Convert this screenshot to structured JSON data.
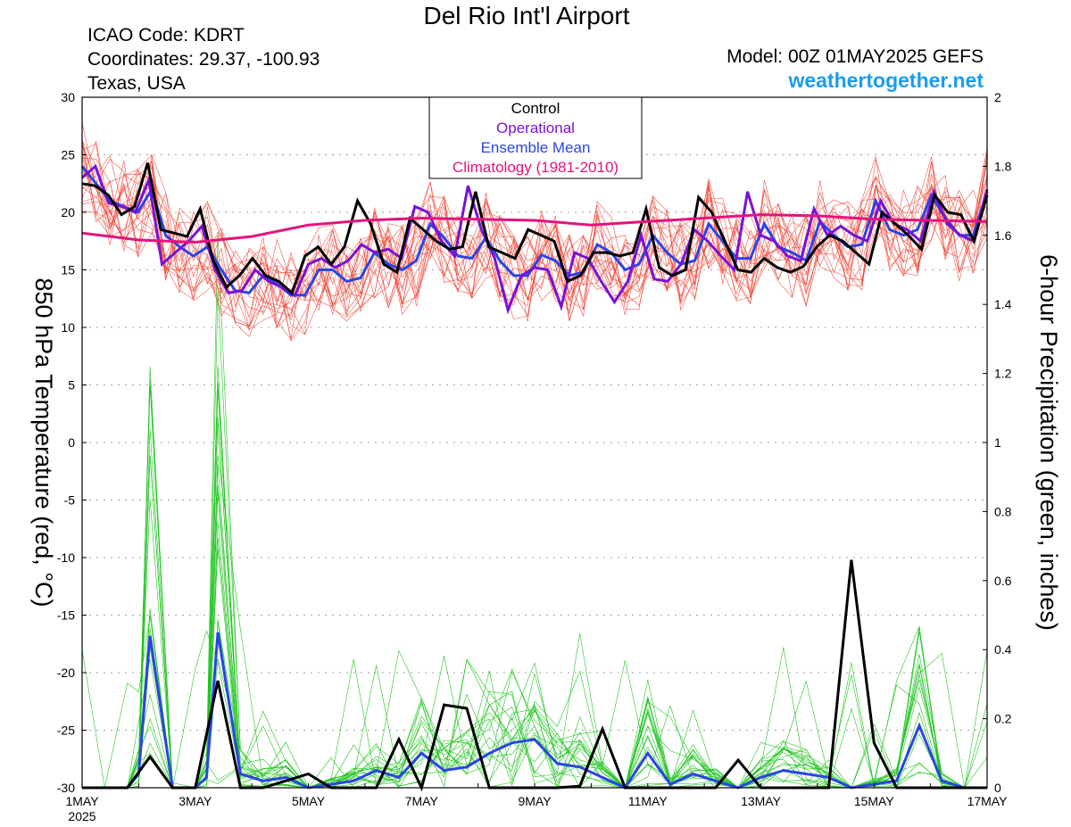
{
  "title": "Del Rio Int'l Airport",
  "station": {
    "icao": "ICAO Code: KDRT",
    "coords": "Coordinates: 29.37, -100.93",
    "region": "Texas, USA"
  },
  "model": "Model: 00Z 01MAY2025 GEFS",
  "brand": "weathertogether.net",
  "colors": {
    "control": "#000000",
    "operational": "#7a11d6",
    "ensemble_mean": "#2a44e6",
    "climatology": "#e6127e",
    "temp_members": "#ef3b2c",
    "precip_members": "#20c420",
    "brand": "#1a9cf0",
    "grid": "#a0a0a0"
  },
  "chart_data": {
    "type": "line",
    "title": "Del Rio Int'l Airport",
    "xlabel": "",
    "ylabel": "850 hPa Temperature (red, °C)",
    "y2label": "6-hour Precipitation (green, inches)",
    "xlim_days": [
      0,
      16
    ],
    "ylim": [
      -30,
      30
    ],
    "y2lim": [
      0,
      2
    ],
    "grid": "horizontal dotted",
    "legend": {
      "placement": "top-center",
      "entries": [
        "Control",
        "Operational",
        "Ensemble Mean",
        "Climatology (1981-2010)"
      ]
    },
    "x_ticks": [
      "1MAY",
      "3MAY",
      "5MAY",
      "7MAY",
      "9MAY",
      "11MAY",
      "13MAY",
      "15MAY",
      "17MAY"
    ],
    "x_tick_days": [
      0,
      2,
      4,
      6,
      8,
      10,
      12,
      14,
      16
    ],
    "x_year": "2025",
    "y_ticks": [
      -30,
      -25,
      -20,
      -15,
      -10,
      -5,
      0,
      5,
      10,
      15,
      20,
      25,
      30
    ],
    "y2_ticks": [
      "0",
      "0.2",
      "0.4",
      "0.6",
      "0.8",
      "1",
      "1.2",
      "1.4",
      "1.6",
      "1.8",
      "2"
    ],
    "series": [
      {
        "name": "Control",
        "axis": "temp",
        "values": [
          22.5,
          22.3,
          21.5,
          19.8,
          20.5,
          24.3,
          18.5,
          18.2,
          17.9,
          20.3,
          15.8,
          13.5,
          14.5,
          16.0,
          14.5,
          14.0,
          13.0,
          16.2,
          17.0,
          15.5,
          17.0,
          21.0,
          19.0,
          15.5,
          14.8,
          19.5,
          18.5,
          17.5,
          16.8,
          17.0,
          21.8,
          17.0,
          16.5,
          16.0,
          18.5,
          18.0,
          17.5,
          14.0,
          14.5,
          16.5,
          16.5,
          16.2,
          16.5,
          20.3,
          15.2,
          14.5,
          15.0,
          21.3,
          20.0,
          17.5,
          15.0,
          14.8,
          16.0,
          15.2,
          14.8,
          15.3,
          17.0,
          18.0,
          17.5,
          16.5,
          15.5,
          20.0,
          19.0,
          18.0,
          16.8,
          21.5,
          20.0,
          19.8,
          17.5,
          21.5
        ]
      },
      {
        "name": "Operational",
        "axis": "temp",
        "values": [
          23.0,
          24.0,
          20.8,
          20.5,
          20.0,
          22.8,
          15.5,
          16.5,
          17.5,
          18.8,
          15.0,
          13.0,
          13.2,
          15.0,
          14.0,
          13.5,
          12.8,
          15.5,
          16.0,
          15.2,
          15.8,
          17.2,
          16.5,
          16.8,
          16.0,
          20.5,
          20.0,
          17.5,
          16.2,
          22.3,
          18.5,
          16.0,
          11.5,
          14.5,
          15.2,
          15.0,
          11.8,
          16.5,
          16.0,
          14.0,
          12.2,
          14.0,
          18.0,
          14.2,
          14.0,
          15.5,
          18.5,
          17.5,
          16.2,
          15.0,
          21.8,
          18.0,
          17.5,
          16.2,
          15.8,
          20.3,
          18.0,
          18.8,
          18.0,
          17.5,
          21.0,
          19.0,
          18.5,
          17.5,
          21.8,
          19.0,
          18.0,
          17.5,
          22.0
        ]
      },
      {
        "name": "Ensemble Mean",
        "axis": "temp",
        "values": [
          24.0,
          22.5,
          21.0,
          20.5,
          20.0,
          22.0,
          18.0,
          17.0,
          16.2,
          17.0,
          15.0,
          13.2,
          13.0,
          14.5,
          13.8,
          12.8,
          12.8,
          15.0,
          15.0,
          14.0,
          14.3,
          16.5,
          15.5,
          15.0,
          15.8,
          19.0,
          17.8,
          16.2,
          16.0,
          17.8,
          15.8,
          14.5,
          14.5,
          16.3,
          15.8,
          14.5,
          14.8,
          17.2,
          16.5,
          15.0,
          15.5,
          18.0,
          16.5,
          15.5,
          15.8,
          19.0,
          17.5,
          16.0,
          16.0,
          19.0,
          17.0,
          16.5,
          15.8,
          19.2,
          18.0,
          17.0,
          17.2,
          21.0,
          18.5,
          18.0,
          18.5,
          21.5,
          19.5,
          18.0,
          18.0,
          21.8
        ]
      },
      {
        "name": "Climatology (1981-2010)",
        "axis": "temp",
        "days": [
          0,
          1,
          2,
          3,
          4,
          5,
          6,
          7,
          8,
          9,
          10,
          11,
          12,
          13,
          14,
          15,
          16
        ],
        "values": [
          18.2,
          17.6,
          17.4,
          17.9,
          18.9,
          19.3,
          19.5,
          19.4,
          19.3,
          18.9,
          19.2,
          19.5,
          19.8,
          19.7,
          19.4,
          19.3,
          19.2
        ]
      },
      {
        "name": "Control",
        "axis": "precip",
        "values": [
          0,
          0,
          0,
          0,
          0,
          0,
          0,
          0,
          0.005,
          0.04,
          0.09,
          0.02,
          0.0,
          0.0,
          0.31,
          0.02,
          0.015,
          0.01,
          0.02,
          0.04,
          0.02,
          0.005,
          0,
          0,
          0,
          0,
          0.01,
          0.005,
          0,
          0,
          0.14,
          0.06,
          0.02,
          0,
          0,
          0,
          0.24,
          0.23,
          0,
          0,
          0,
          0,
          0,
          0,
          0,
          0,
          0.005,
          0.005,
          0,
          0,
          0,
          0.08,
          0.15,
          0.08,
          0,
          0,
          0,
          0.01,
          0,
          0,
          0,
          0,
          0,
          0,
          0.03,
          0.03,
          0,
          0,
          0,
          0,
          0,
          0.01,
          0,
          0,
          0,
          0.005,
          0,
          0,
          0,
          0,
          0,
          0,
          0,
          0.01,
          0,
          0,
          0,
          0.05,
          0.03,
          0,
          0,
          0,
          0,
          0,
          0,
          0,
          0,
          0,
          0,
          0,
          0,
          0,
          0,
          0,
          0,
          0,
          0,
          0,
          0,
          0,
          0,
          0,
          0,
          0,
          0,
          0,
          0,
          0,
          0,
          0,
          0,
          0,
          0,
          0,
          0,
          0
        ]
      },
      {
        "name": "Ensemble Mean",
        "axis": "precip",
        "values": [
          0,
          0,
          0,
          0,
          0,
          0,
          0,
          0,
          0,
          0,
          0,
          0,
          0,
          0,
          0,
          0,
          0,
          0,
          0,
          0,
          0,
          0,
          0,
          0,
          0,
          0,
          0,
          0,
          0,
          0,
          0,
          0,
          0,
          0,
          0,
          0,
          0,
          0,
          0,
          0,
          0,
          0,
          0,
          0,
          0,
          0,
          0,
          0,
          0,
          0,
          0,
          0,
          0,
          0,
          0,
          0,
          0,
          0,
          0,
          0,
          0,
          0,
          0,
          0,
          0,
          0,
          0,
          0,
          0,
          0
        ]
      }
    ],
    "control_temp_days_step": 0.2319,
    "precip_control": {
      "days": [
        0,
        0.4,
        0.8,
        1.2,
        1.6,
        2.0,
        2.4,
        2.8,
        3.2,
        3.6,
        4.0,
        4.4,
        4.8,
        5.2,
        5.6,
        6.0,
        6.4,
        6.8,
        7.2,
        7.6,
        8.0,
        8.4,
        8.8,
        9.2,
        9.6,
        10.0,
        10.4,
        10.8,
        11.2,
        11.6,
        12.0,
        12.4,
        12.8,
        13.2,
        13.6,
        14.0,
        14.4,
        14.8,
        15.2,
        15.6,
        16.0
      ],
      "values": [
        0,
        0,
        0,
        0.09,
        0,
        0.0,
        0.31,
        0,
        0.0,
        0.02,
        0.04,
        0,
        0,
        0.0,
        0.14,
        0.0,
        0.24,
        0.23,
        0,
        0,
        0,
        0,
        0.005,
        0.17,
        0,
        0,
        0,
        0,
        0.0,
        0.08,
        0,
        0,
        0.0,
        0.0,
        0.66,
        0.13,
        0,
        0,
        0,
        0.0,
        0
      ]
    },
    "precip_mean": {
      "days": [
        0,
        0.4,
        0.8,
        1.0,
        1.2,
        1.6,
        2.0,
        2.2,
        2.4,
        2.8,
        3.2,
        3.6,
        4.0,
        4.4,
        4.8,
        5.2,
        5.6,
        6.0,
        6.4,
        6.8,
        7.2,
        7.6,
        8.0,
        8.4,
        8.8,
        9.2,
        9.6,
        10.0,
        10.4,
        10.8,
        11.2,
        11.6,
        12.0,
        12.4,
        12.8,
        13.2,
        13.6,
        14.0,
        14.4,
        14.8,
        15.2,
        15.6,
        16.0
      ],
      "values": [
        0,
        0,
        0,
        0.04,
        0.44,
        0,
        0.0,
        0.03,
        0.45,
        0.04,
        0.02,
        0.03,
        0.0,
        0.01,
        0.02,
        0.05,
        0.03,
        0.1,
        0.05,
        0.06,
        0.1,
        0.13,
        0.14,
        0.07,
        0.06,
        0.03,
        0.0,
        0.1,
        0.01,
        0.04,
        0.02,
        0.0,
        0.03,
        0.05,
        0.04,
        0.03,
        0.0,
        0.01,
        0.02,
        0.18,
        0.02,
        0.0,
        0.0
      ]
    }
  }
}
